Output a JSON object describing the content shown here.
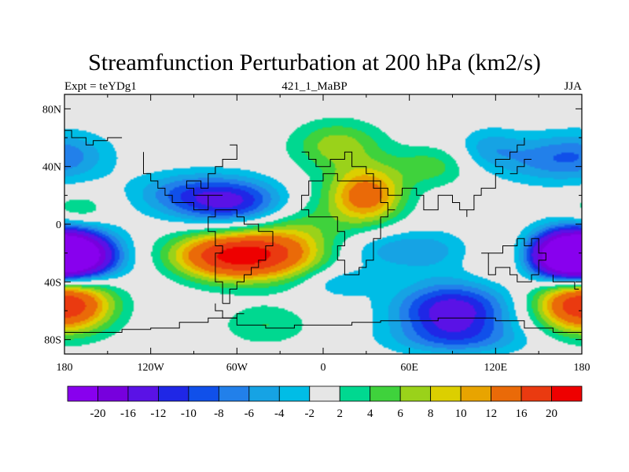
{
  "chart_data": {
    "type": "heatmap",
    "title": "Streamfunction Perturbation at 200 hPa (km2/s)",
    "left_label": "Expt = teYDg1",
    "center_label": "421_1_MaBP",
    "right_label": "JJA",
    "x_ticks": [
      "180",
      "120W",
      "60W",
      "0",
      "60E",
      "120E",
      "180"
    ],
    "x_tick_values": [
      -180,
      -120,
      -60,
      0,
      60,
      120,
      180
    ],
    "y_ticks": [
      "80N",
      "40N",
      "0",
      "40S",
      "80S"
    ],
    "y_tick_values": [
      80,
      40,
      0,
      -40,
      -80
    ],
    "xlim": [
      -180,
      180
    ],
    "ylim": [
      -90,
      90
    ],
    "colorbar": {
      "levels": [
        "-20",
        "-16",
        "-12",
        "-10",
        "-8",
        "-6",
        "-4",
        "-2",
        "2",
        "4",
        "6",
        "8",
        "10",
        "12",
        "16",
        "20"
      ],
      "level_values": [
        -20,
        -16,
        -12,
        -10,
        -8,
        -6,
        -4,
        -2,
        2,
        4,
        6,
        8,
        10,
        12,
        16,
        20
      ],
      "colors": [
        "#8800ee",
        "#7700dd",
        "#5a12e6",
        "#1f27e6",
        "#1050ea",
        "#2280ea",
        "#16a3e4",
        "#00bde6",
        "#e6e6e6",
        "#00d890",
        "#3fd23c",
        "#9ad21a",
        "#dccf00",
        "#e8a400",
        "#ea6a08",
        "#ea3a10",
        "#ee0000"
      ]
    },
    "features": [
      {
        "lon": -175,
        "lat": -22,
        "amp": -24,
        "slon": 22,
        "slat": 12
      },
      {
        "lon": 170,
        "lat": -22,
        "amp": -22,
        "slon": 20,
        "slat": 12
      },
      {
        "lon": -60,
        "lat": 15,
        "amp": -13,
        "slon": 30,
        "slat": 12
      },
      {
        "lon": -100,
        "lat": 22,
        "amp": -5,
        "slon": 25,
        "slat": 10
      },
      {
        "lon": 90,
        "lat": -60,
        "amp": -14,
        "slon": 28,
        "slat": 14
      },
      {
        "lon": 95,
        "lat": -80,
        "amp": -5,
        "slon": 35,
        "slat": 8
      },
      {
        "lon": 60,
        "lat": -18,
        "amp": -6,
        "slon": 35,
        "slat": 10
      },
      {
        "lon": 10,
        "lat": -40,
        "amp": -4,
        "slon": 18,
        "slat": 8
      },
      {
        "lon": -110,
        "lat": -25,
        "amp": -2.5,
        "slon": 22,
        "slat": 14
      },
      {
        "lon": 155,
        "lat": 45,
        "amp": -6,
        "slon": 28,
        "slat": 12
      },
      {
        "lon": 115,
        "lat": 53,
        "amp": -4,
        "slon": 15,
        "slat": 10
      },
      {
        "lon": -175,
        "lat": 48,
        "amp": -4,
        "slon": 22,
        "slat": 12
      },
      {
        "lon": -60,
        "lat": -22,
        "amp": 22,
        "slon": 35,
        "slat": 12
      },
      {
        "lon": -175,
        "lat": -55,
        "amp": 11,
        "slon": 22,
        "slat": 14
      },
      {
        "lon": 175,
        "lat": -55,
        "amp": 10,
        "slon": 22,
        "slat": 14
      },
      {
        "lon": 30,
        "lat": 20,
        "amp": 14,
        "slon": 18,
        "slat": 14
      },
      {
        "lon": 10,
        "lat": 55,
        "amp": 7,
        "slon": 22,
        "slat": 12
      },
      {
        "lon": -20,
        "lat": 0,
        "amp": 6,
        "slon": 25,
        "slat": 20
      },
      {
        "lon": 130,
        "lat": -22,
        "amp": 4,
        "slon": 22,
        "slat": 12
      },
      {
        "lon": -40,
        "lat": -70,
        "amp": 4,
        "slon": 22,
        "slat": 10
      },
      {
        "lon": 75,
        "lat": 40,
        "amp": 5,
        "slon": 20,
        "slat": 10
      },
      {
        "lon": -170,
        "lat": 10,
        "amp": 4,
        "slon": 15,
        "slat": 8
      }
    ]
  }
}
